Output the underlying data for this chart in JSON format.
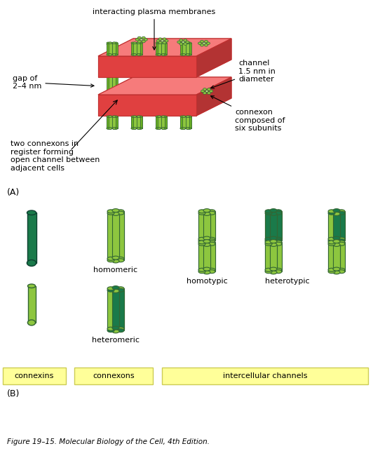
{
  "bg_color": "#ffffff",
  "light_green": "#8dc63f",
  "med_green": "#6ab023",
  "dark_green": "#1a7a4a",
  "red_mem": "#e04040",
  "red_dark": "#c03030",
  "yellow_bg": "#ffff99",
  "yellow_border": "#cccc55",
  "title_text": "interacting plasma membranes",
  "label_gap": "gap of\n2–4 nm",
  "label_channel": "channel\n1.5 nm in\ndiameter",
  "label_connexon": "connexon\ncomposed of\nsix subunits",
  "label_two_connexons": "two connexons in\nregister forming\nopen channel between\nadjacent cells",
  "label_A": "(A)",
  "label_B": "(B)",
  "label_homomeric": "homomeric",
  "label_heteromeric": "heteromeric",
  "label_homotypic": "homotypic",
  "label_heterotypic": "heterotypic",
  "label_connexins": "connexins",
  "label_connexons_box": "connexons",
  "label_intercellular": "intercellular channels",
  "figure_caption": "Figure 19–15. Molecular Biology of the Cell, 4th Edition."
}
